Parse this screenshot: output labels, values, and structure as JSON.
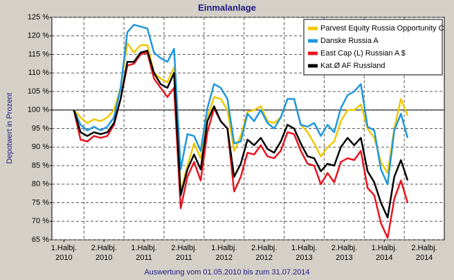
{
  "chart_data": {
    "type": "line",
    "title": "Einmalanlage",
    "ylabel": "Depotwert in Prozent",
    "footer": "Auswertung vom 01.05.2010 bis zum 31.07.2014",
    "xlim": [
      2010.1,
      2015.0
    ],
    "ylim": [
      65,
      125
    ],
    "yticks": [
      {
        "value": 65,
        "label": "65 %"
      },
      {
        "value": 70,
        "label": "70 %"
      },
      {
        "value": 75,
        "label": "75 %"
      },
      {
        "value": 80,
        "label": "80 %"
      },
      {
        "value": 85,
        "label": "85 %"
      },
      {
        "value": 90,
        "label": "90 %"
      },
      {
        "value": 95,
        "label": "95 %"
      },
      {
        "value": 100,
        "label": "100 %"
      },
      {
        "value": 105,
        "label": "105 %"
      },
      {
        "value": 110,
        "label": "110 %"
      },
      {
        "value": 115,
        "label": "115 %"
      },
      {
        "value": 120,
        "label": "120 %"
      },
      {
        "value": 125,
        "label": "125 %"
      }
    ],
    "xticks": [
      {
        "value": 2010.25,
        "label": [
          "1.Halbj.",
          "2010"
        ]
      },
      {
        "value": 2010.75,
        "label": [
          "2.Halbj.",
          "2010"
        ]
      },
      {
        "value": 2011.25,
        "label": [
          "1.Halbj.",
          "2011"
        ]
      },
      {
        "value": 2011.75,
        "label": [
          "2.Halbj.",
          "2011"
        ]
      },
      {
        "value": 2012.25,
        "label": [
          "1.Halbj.",
          "2012"
        ]
      },
      {
        "value": 2012.75,
        "label": [
          "2.Halbj.",
          "2012"
        ]
      },
      {
        "value": 2013.25,
        "label": [
          "1.Halbj.",
          "2013"
        ]
      },
      {
        "value": 2013.75,
        "label": [
          "2.Halbj.",
          "2013"
        ]
      },
      {
        "value": 2014.25,
        "label": [
          "1.Halbj.",
          "2014"
        ]
      },
      {
        "value": 2014.75,
        "label": [
          "2.Halbj.",
          "2014"
        ]
      }
    ],
    "xgrid": [
      2010.5,
      2011.0,
      2011.5,
      2012.0,
      2012.5,
      2013.0,
      2013.5,
      2014.0,
      2014.5
    ],
    "grid": true,
    "reference_line": 100,
    "legend": "top-right",
    "x": [
      2010.375,
      2010.458,
      2010.542,
      2010.625,
      2010.708,
      2010.792,
      2010.875,
      2010.958,
      2011.042,
      2011.125,
      2011.208,
      2011.292,
      2011.375,
      2011.458,
      2011.542,
      2011.625,
      2011.708,
      2011.792,
      2011.875,
      2011.958,
      2012.042,
      2012.125,
      2012.208,
      2012.292,
      2012.375,
      2012.458,
      2012.542,
      2012.625,
      2012.708,
      2012.792,
      2012.875,
      2012.958,
      2013.042,
      2013.125,
      2013.208,
      2013.292,
      2013.375,
      2013.458,
      2013.542,
      2013.625,
      2013.708,
      2013.792,
      2013.875,
      2013.958,
      2014.042,
      2014.125,
      2014.208,
      2014.292,
      2014.375,
      2014.458,
      2014.542
    ],
    "series": [
      {
        "name": "Parvest Equity Russia Opportunity C",
        "color": "#f0c800",
        "values": [
          100,
          98,
          96.5,
          97.5,
          97,
          98,
          100,
          106,
          118,
          115.5,
          117.5,
          117.5,
          110,
          108.5,
          107.5,
          111.5,
          78,
          85,
          91,
          87,
          98,
          103.5,
          103,
          100,
          89,
          93,
          99.5,
          100,
          101,
          97,
          96.5,
          98,
          103,
          103,
          96,
          94,
          91,
          87.5,
          90,
          91.5,
          97,
          100,
          100,
          101.5,
          95,
          92.5,
          86,
          83,
          95,
          103,
          98.5
        ]
      },
      {
        "name": "Danske Russia A",
        "color": "#1e96dc",
        "values": [
          100,
          96,
          94.5,
          95.5,
          94.5,
          95.5,
          98,
          106,
          121,
          123,
          122.5,
          122,
          115.5,
          114,
          113,
          116.5,
          84,
          93.5,
          93,
          89,
          100.5,
          107,
          106,
          103,
          91,
          91.5,
          99,
          97,
          100,
          96.5,
          95,
          98,
          103,
          103,
          96,
          95.5,
          96.5,
          93,
          96,
          94,
          100.5,
          104,
          105,
          107,
          95.5,
          94.5,
          84,
          80,
          94.5,
          99,
          92.5
        ]
      },
      {
        "name": "East Cap (L) Russian A $",
        "color": "#e8141e",
        "values": [
          100,
          92,
          91.5,
          93,
          92.5,
          93,
          96,
          103,
          112,
          112.5,
          115,
          115.5,
          108.5,
          106,
          103.5,
          106,
          73.5,
          82,
          86,
          81,
          94,
          100.5,
          97,
          95,
          78,
          82,
          88.5,
          88,
          90.5,
          87.5,
          87,
          89,
          94,
          93.5,
          89,
          85.5,
          85,
          80,
          83,
          80.5,
          86,
          87,
          86.5,
          89,
          79,
          77,
          69.5,
          65.5,
          76,
          81,
          75
        ]
      },
      {
        "name": "Kat.Ø AF Russland",
        "color": "#000000",
        "values": [
          100,
          94,
          93,
          94,
          93.5,
          94,
          96.5,
          103,
          113,
          113,
          115.5,
          116,
          110,
          107,
          106,
          110,
          77,
          84,
          88,
          84,
          97,
          101,
          97,
          95,
          82,
          85.5,
          92,
          90.5,
          92.5,
          89.5,
          88.5,
          91.5,
          96,
          95,
          91,
          87.5,
          87,
          83.5,
          85.5,
          85,
          90,
          92.5,
          90.5,
          92.5,
          83.5,
          80.5,
          75,
          71,
          82,
          86.5,
          81
        ]
      }
    ]
  }
}
